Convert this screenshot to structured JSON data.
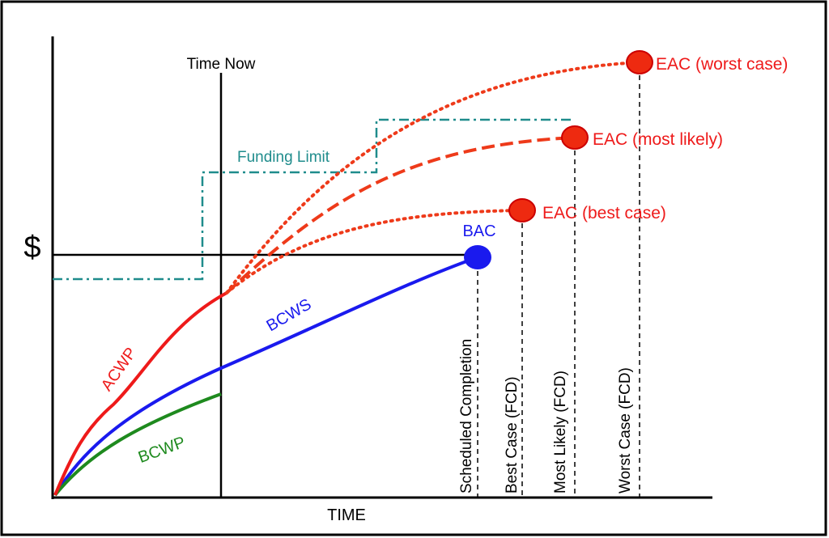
{
  "title_marker": "Time Now",
  "funding_label": "Funding Limit",
  "y_axis_label": "$",
  "x_axis_label": "TIME",
  "bac_label": "BAC",
  "eac_labels": [
    "EAC (worst case)",
    "EAC (most likely)",
    "EAC (best case)"
  ],
  "curve_labels": {
    "bcws": "BCWS",
    "acwp": "ACWP",
    "bcwp": "BCWP"
  },
  "completion_labels": [
    "Scheduled Completion",
    "Best Case (FCD)",
    "Most Likely (FCD)",
    "Worst Case (FCD)"
  ]
}
